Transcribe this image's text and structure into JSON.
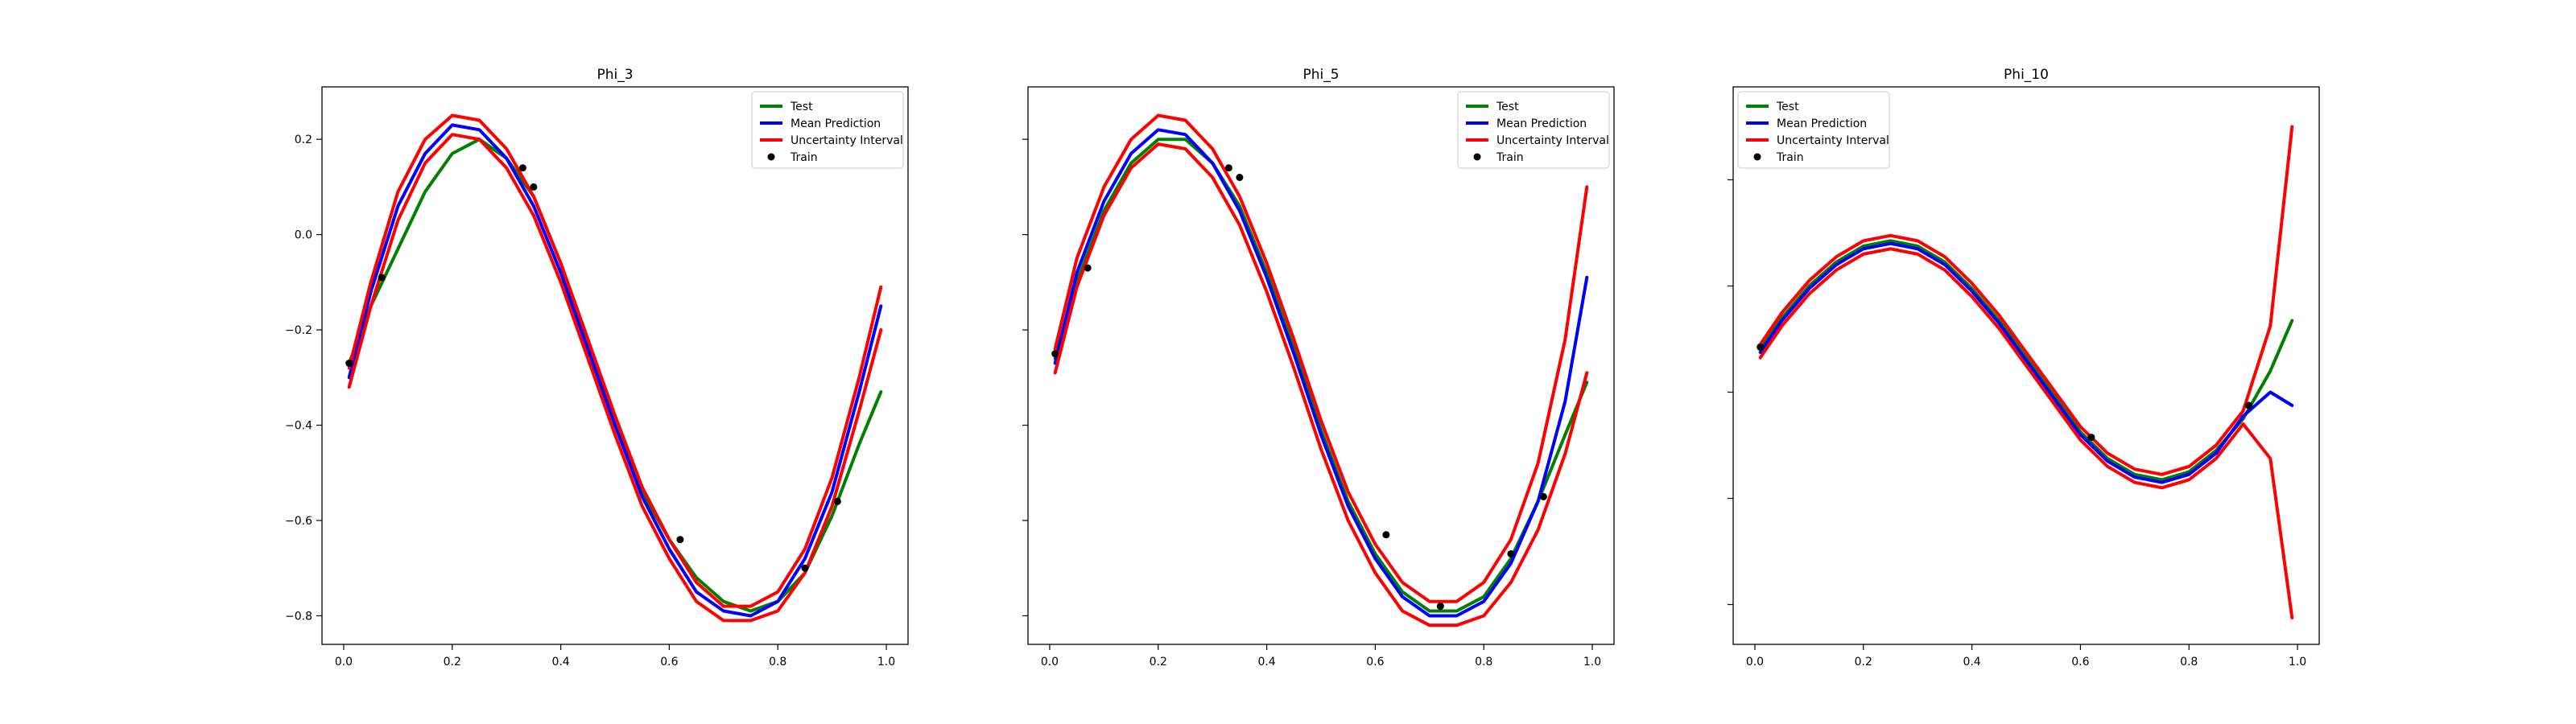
{
  "figure": {
    "background": "#ffffff"
  },
  "legend": {
    "entries": [
      {
        "label": "Test",
        "kind": "line",
        "color": "#008000"
      },
      {
        "label": "Mean Prediction",
        "kind": "line",
        "color": "#0000ff"
      },
      {
        "label": "Uncertainty Interval",
        "kind": "line",
        "color": "#ff0000"
      },
      {
        "label": "Train",
        "kind": "marker",
        "color": "#000000"
      }
    ]
  },
  "chart_data": [
    {
      "type": "line",
      "title": "Phi_3",
      "xlabel": "",
      "ylabel": "",
      "xlim": [
        -0.04,
        1.04
      ],
      "ylim": [
        -0.86,
        0.31
      ],
      "xticks": [
        0.0,
        0.2,
        0.4,
        0.6,
        0.8,
        1.0
      ],
      "xtick_labels": [
        "0.0",
        "0.2",
        "0.4",
        "0.6",
        "0.8",
        "1.0"
      ],
      "yticks": [
        -0.8,
        -0.6,
        -0.4,
        -0.2,
        0.0,
        0.2
      ],
      "ytick_labels": [
        "−0.8",
        "−0.6",
        "−0.4",
        "−0.2",
        "0.0",
        "0.2"
      ],
      "grid": false,
      "legend_position": "top-right",
      "train": {
        "x": [
          0.01,
          0.07,
          0.33,
          0.35,
          0.62,
          0.85,
          0.91
        ],
        "y": [
          -0.27,
          -0.09,
          0.14,
          0.1,
          -0.64,
          -0.7,
          -0.56
        ]
      },
      "series": [
        {
          "name": "Test",
          "color": "#008000",
          "x": [
            0.01,
            0.05,
            0.1,
            0.15,
            0.2,
            0.25,
            0.3,
            0.35,
            0.4,
            0.45,
            0.5,
            0.55,
            0.6,
            0.65,
            0.7,
            0.75,
            0.8,
            0.85,
            0.9,
            0.95,
            0.99
          ],
          "y": [
            -0.27,
            -0.15,
            -0.03,
            0.09,
            0.17,
            0.2,
            0.16,
            0.08,
            -0.06,
            -0.22,
            -0.4,
            -0.54,
            -0.64,
            -0.72,
            -0.77,
            -0.79,
            -0.77,
            -0.71,
            -0.59,
            -0.44,
            -0.33
          ]
        },
        {
          "name": "Mean Prediction",
          "color": "#0000ff",
          "x": [
            0.01,
            0.05,
            0.1,
            0.15,
            0.2,
            0.25,
            0.3,
            0.35,
            0.4,
            0.45,
            0.5,
            0.55,
            0.6,
            0.65,
            0.7,
            0.75,
            0.8,
            0.85,
            0.9,
            0.95,
            0.99
          ],
          "y": [
            -0.3,
            -0.12,
            0.06,
            0.17,
            0.23,
            0.22,
            0.16,
            0.06,
            -0.08,
            -0.24,
            -0.4,
            -0.55,
            -0.66,
            -0.75,
            -0.79,
            -0.8,
            -0.77,
            -0.68,
            -0.54,
            -0.33,
            -0.15
          ]
        },
        {
          "name": "Uncertainty Interval",
          "color": "#ff0000",
          "x": [
            0.01,
            0.05,
            0.1,
            0.15,
            0.2,
            0.25,
            0.3,
            0.35,
            0.4,
            0.45,
            0.5,
            0.55,
            0.6,
            0.65,
            0.7,
            0.75,
            0.8,
            0.85,
            0.9,
            0.95,
            0.99
          ],
          "y": [
            -0.28,
            -0.1,
            0.09,
            0.2,
            0.25,
            0.24,
            0.18,
            0.08,
            -0.06,
            -0.22,
            -0.38,
            -0.53,
            -0.64,
            -0.73,
            -0.78,
            -0.78,
            -0.75,
            -0.66,
            -0.51,
            -0.3,
            -0.11
          ]
        },
        {
          "name": "Uncertainty Interval",
          "color": "#ff0000",
          "x": [
            0.01,
            0.05,
            0.1,
            0.15,
            0.2,
            0.25,
            0.3,
            0.35,
            0.4,
            0.45,
            0.5,
            0.55,
            0.6,
            0.65,
            0.7,
            0.75,
            0.8,
            0.85,
            0.9,
            0.95,
            0.99
          ],
          "y": [
            -0.32,
            -0.15,
            0.03,
            0.15,
            0.21,
            0.2,
            0.14,
            0.04,
            -0.1,
            -0.26,
            -0.42,
            -0.57,
            -0.68,
            -0.77,
            -0.81,
            -0.81,
            -0.79,
            -0.71,
            -0.57,
            -0.37,
            -0.2
          ]
        }
      ]
    },
    {
      "type": "line",
      "title": "Phi_5",
      "xlabel": "",
      "ylabel": "",
      "xlim": [
        -0.04,
        1.04
      ],
      "ylim": [
        -0.86,
        0.31
      ],
      "xticks": [
        0.0,
        0.2,
        0.4,
        0.6,
        0.8,
        1.0
      ],
      "xtick_labels": [
        "0.0",
        "0.2",
        "0.4",
        "0.6",
        "0.8",
        "1.0"
      ],
      "yticks": [
        -0.8,
        -0.6,
        -0.4,
        -0.2,
        0.0,
        0.2
      ],
      "ytick_labels": [],
      "grid": false,
      "legend_position": "top-right",
      "train": {
        "x": [
          0.01,
          0.07,
          0.33,
          0.35,
          0.62,
          0.72,
          0.85,
          0.91
        ],
        "y": [
          -0.25,
          -0.07,
          0.14,
          0.12,
          -0.63,
          -0.78,
          -0.67,
          -0.55
        ]
      },
      "series": [
        {
          "name": "Test",
          "color": "#008000",
          "x": [
            0.01,
            0.05,
            0.1,
            0.15,
            0.2,
            0.25,
            0.3,
            0.35,
            0.4,
            0.45,
            0.5,
            0.55,
            0.6,
            0.65,
            0.7,
            0.75,
            0.8,
            0.85,
            0.9,
            0.95,
            0.99
          ],
          "y": [
            -0.26,
            -0.1,
            0.05,
            0.15,
            0.2,
            0.2,
            0.15,
            0.06,
            -0.08,
            -0.24,
            -0.41,
            -0.56,
            -0.67,
            -0.75,
            -0.79,
            -0.79,
            -0.76,
            -0.68,
            -0.56,
            -0.42,
            -0.31
          ]
        },
        {
          "name": "Mean Prediction",
          "color": "#0000ff",
          "x": [
            0.01,
            0.05,
            0.1,
            0.15,
            0.2,
            0.25,
            0.3,
            0.35,
            0.4,
            0.45,
            0.5,
            0.55,
            0.6,
            0.65,
            0.7,
            0.75,
            0.8,
            0.85,
            0.9,
            0.95,
            0.99
          ],
          "y": [
            -0.27,
            -0.08,
            0.07,
            0.17,
            0.22,
            0.21,
            0.15,
            0.05,
            -0.09,
            -0.25,
            -0.42,
            -0.57,
            -0.68,
            -0.76,
            -0.8,
            -0.8,
            -0.77,
            -0.69,
            -0.56,
            -0.35,
            -0.09
          ]
        },
        {
          "name": "Uncertainty Interval",
          "color": "#ff0000",
          "x": [
            0.01,
            0.05,
            0.1,
            0.15,
            0.2,
            0.25,
            0.3,
            0.35,
            0.4,
            0.45,
            0.5,
            0.55,
            0.6,
            0.65,
            0.7,
            0.75,
            0.8,
            0.85,
            0.9,
            0.95,
            0.99
          ],
          "y": [
            -0.24,
            -0.05,
            0.1,
            0.2,
            0.25,
            0.24,
            0.18,
            0.08,
            -0.06,
            -0.22,
            -0.39,
            -0.54,
            -0.65,
            -0.73,
            -0.77,
            -0.77,
            -0.73,
            -0.64,
            -0.48,
            -0.22,
            0.1
          ]
        },
        {
          "name": "Uncertainty Interval",
          "color": "#ff0000",
          "x": [
            0.01,
            0.05,
            0.1,
            0.15,
            0.2,
            0.25,
            0.3,
            0.35,
            0.4,
            0.45,
            0.5,
            0.55,
            0.6,
            0.65,
            0.7,
            0.75,
            0.8,
            0.85,
            0.9,
            0.95,
            0.99
          ],
          "y": [
            -0.29,
            -0.11,
            0.04,
            0.14,
            0.19,
            0.18,
            0.12,
            0.02,
            -0.12,
            -0.28,
            -0.45,
            -0.6,
            -0.71,
            -0.79,
            -0.82,
            -0.82,
            -0.8,
            -0.73,
            -0.62,
            -0.46,
            -0.29
          ]
        }
      ]
    },
    {
      "type": "line",
      "title": "Phi_10",
      "xlabel": "",
      "ylabel": "",
      "xlim": [
        -0.04,
        1.04
      ],
      "ylim": [
        -1.35,
        0.75
      ],
      "xticks": [
        0.0,
        0.2,
        0.4,
        0.6,
        0.8,
        1.0
      ],
      "xtick_labels": [
        "0.0",
        "0.2",
        "0.4",
        "0.6",
        "0.8",
        "1.0"
      ],
      "yticks": [
        -1.2,
        -0.8,
        -0.4,
        0.0,
        0.4
      ],
      "ytick_labels": [],
      "grid": false,
      "legend_position": "top-left",
      "train": {
        "x": [
          0.01,
          0.62,
          0.91
        ],
        "y": [
          -0.23,
          -0.57,
          -0.45
        ]
      },
      "series": [
        {
          "name": "Test",
          "color": "#008000",
          "x": [
            0.01,
            0.05,
            0.1,
            0.15,
            0.2,
            0.25,
            0.3,
            0.35,
            0.4,
            0.45,
            0.5,
            0.55,
            0.6,
            0.65,
            0.7,
            0.75,
            0.8,
            0.85,
            0.9,
            0.95,
            0.99
          ],
          "y": [
            -0.24,
            -0.12,
            0.0,
            0.09,
            0.15,
            0.17,
            0.15,
            0.09,
            -0.01,
            -0.13,
            -0.27,
            -0.41,
            -0.55,
            -0.65,
            -0.71,
            -0.73,
            -0.7,
            -0.62,
            -0.5,
            -0.32,
            -0.13
          ]
        },
        {
          "name": "Mean Prediction",
          "color": "#0000ff",
          "x": [
            0.01,
            0.05,
            0.1,
            0.15,
            0.2,
            0.25,
            0.3,
            0.35,
            0.4,
            0.45,
            0.5,
            0.55,
            0.6,
            0.65,
            0.7,
            0.75,
            0.8,
            0.85,
            0.9,
            0.95,
            0.99
          ],
          "y": [
            -0.25,
            -0.13,
            -0.01,
            0.08,
            0.14,
            0.16,
            0.14,
            0.08,
            -0.02,
            -0.14,
            -0.28,
            -0.42,
            -0.56,
            -0.66,
            -0.72,
            -0.74,
            -0.71,
            -0.63,
            -0.49,
            -0.4,
            -0.45
          ]
        },
        {
          "name": "Uncertainty Interval",
          "color": "#ff0000",
          "x": [
            0.01,
            0.05,
            0.1,
            0.15,
            0.2,
            0.25,
            0.3,
            0.35,
            0.4,
            0.45,
            0.5,
            0.55,
            0.6,
            0.65,
            0.7,
            0.75,
            0.8,
            0.85,
            0.9,
            0.95,
            0.99
          ],
          "y": [
            -0.22,
            -0.1,
            0.02,
            0.11,
            0.17,
            0.19,
            0.17,
            0.11,
            0.01,
            -0.11,
            -0.25,
            -0.39,
            -0.53,
            -0.63,
            -0.69,
            -0.71,
            -0.68,
            -0.6,
            -0.47,
            -0.15,
            0.6
          ]
        },
        {
          "name": "Uncertainty Interval",
          "color": "#ff0000",
          "x": [
            0.01,
            0.05,
            0.1,
            0.15,
            0.2,
            0.25,
            0.3,
            0.35,
            0.4,
            0.45,
            0.5,
            0.55,
            0.6,
            0.65,
            0.7,
            0.75,
            0.8,
            0.85,
            0.9,
            0.95,
            0.99
          ],
          "y": [
            -0.27,
            -0.15,
            -0.03,
            0.06,
            0.12,
            0.14,
            0.12,
            0.06,
            -0.04,
            -0.16,
            -0.3,
            -0.44,
            -0.58,
            -0.68,
            -0.74,
            -0.76,
            -0.73,
            -0.65,
            -0.52,
            -0.65,
            -1.25
          ]
        }
      ]
    }
  ]
}
